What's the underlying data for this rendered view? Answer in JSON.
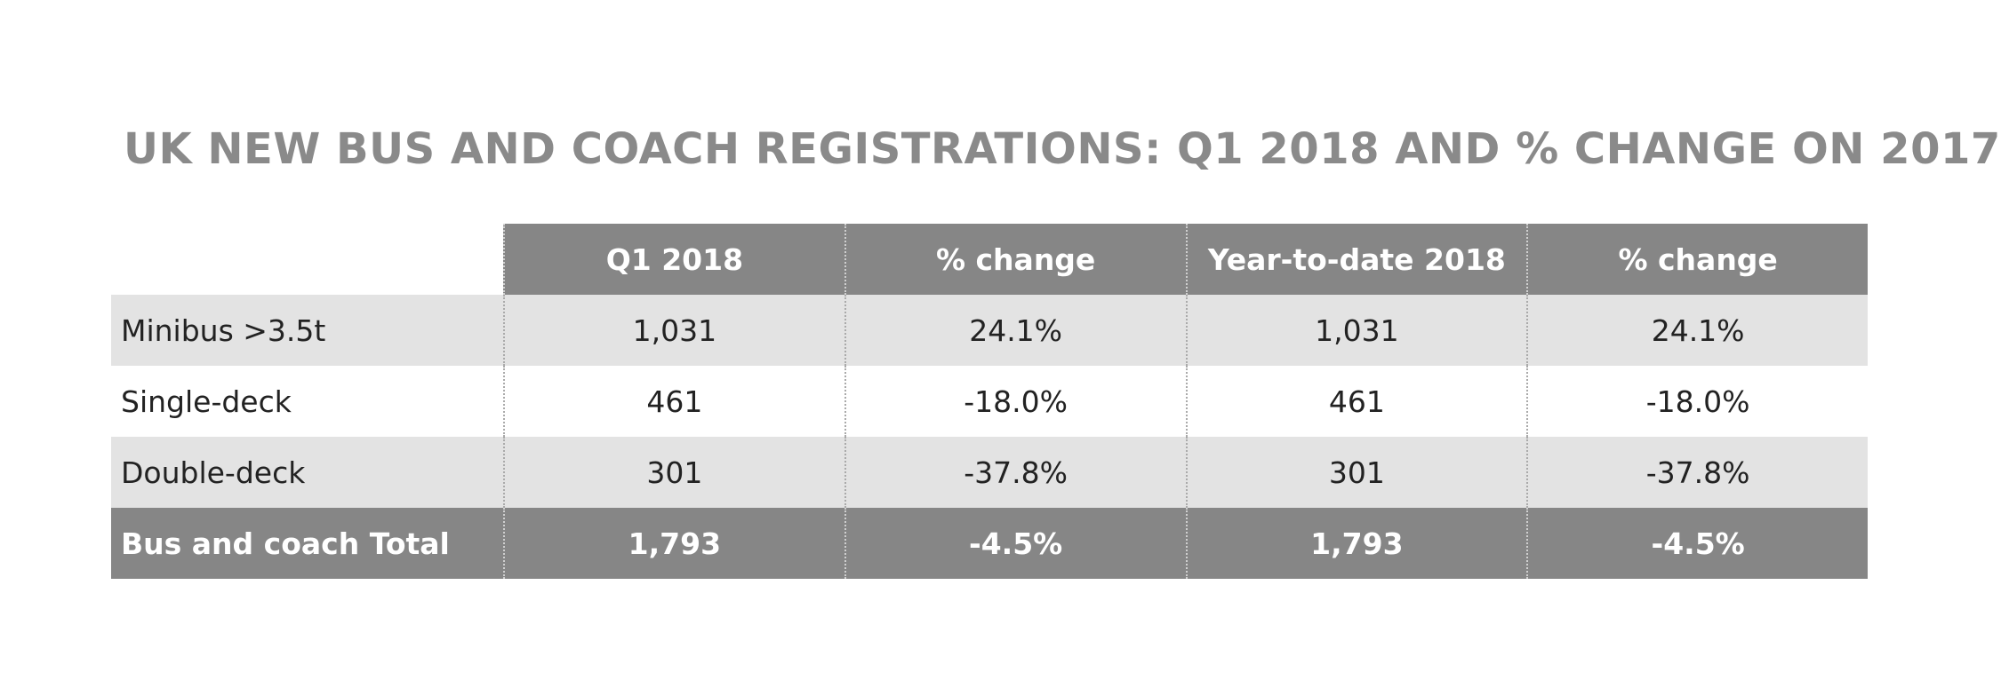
{
  "title": "UK NEW BUS AND COACH REGISTRATIONS: Q1 2018 AND % CHANGE ON 2017",
  "colors": {
    "title": "#8a8a8a",
    "header_bg": "#868686",
    "shaded_row_bg": "#e3e3e3",
    "text": "#222222",
    "header_text": "#ffffff"
  },
  "chart_data": {
    "type": "table",
    "title": "UK NEW BUS AND COACH REGISTRATIONS: Q1 2018 AND % CHANGE ON 2017",
    "columns": [
      "",
      "Q1 2018",
      "% change",
      "Year-to-date 2018",
      "% change"
    ],
    "rows": [
      [
        "Minibus >3.5t",
        "1,031",
        "24.1%",
        "1,031",
        "24.1%"
      ],
      [
        "Single-deck",
        "461",
        "-18.0%",
        "461",
        "-18.0%"
      ],
      [
        "Double-deck",
        "301",
        "-37.8%",
        "301",
        "-37.8%"
      ],
      [
        "Bus and coach Total",
        "1,793",
        "-4.5%",
        "1,793",
        "-4.5%"
      ]
    ]
  }
}
